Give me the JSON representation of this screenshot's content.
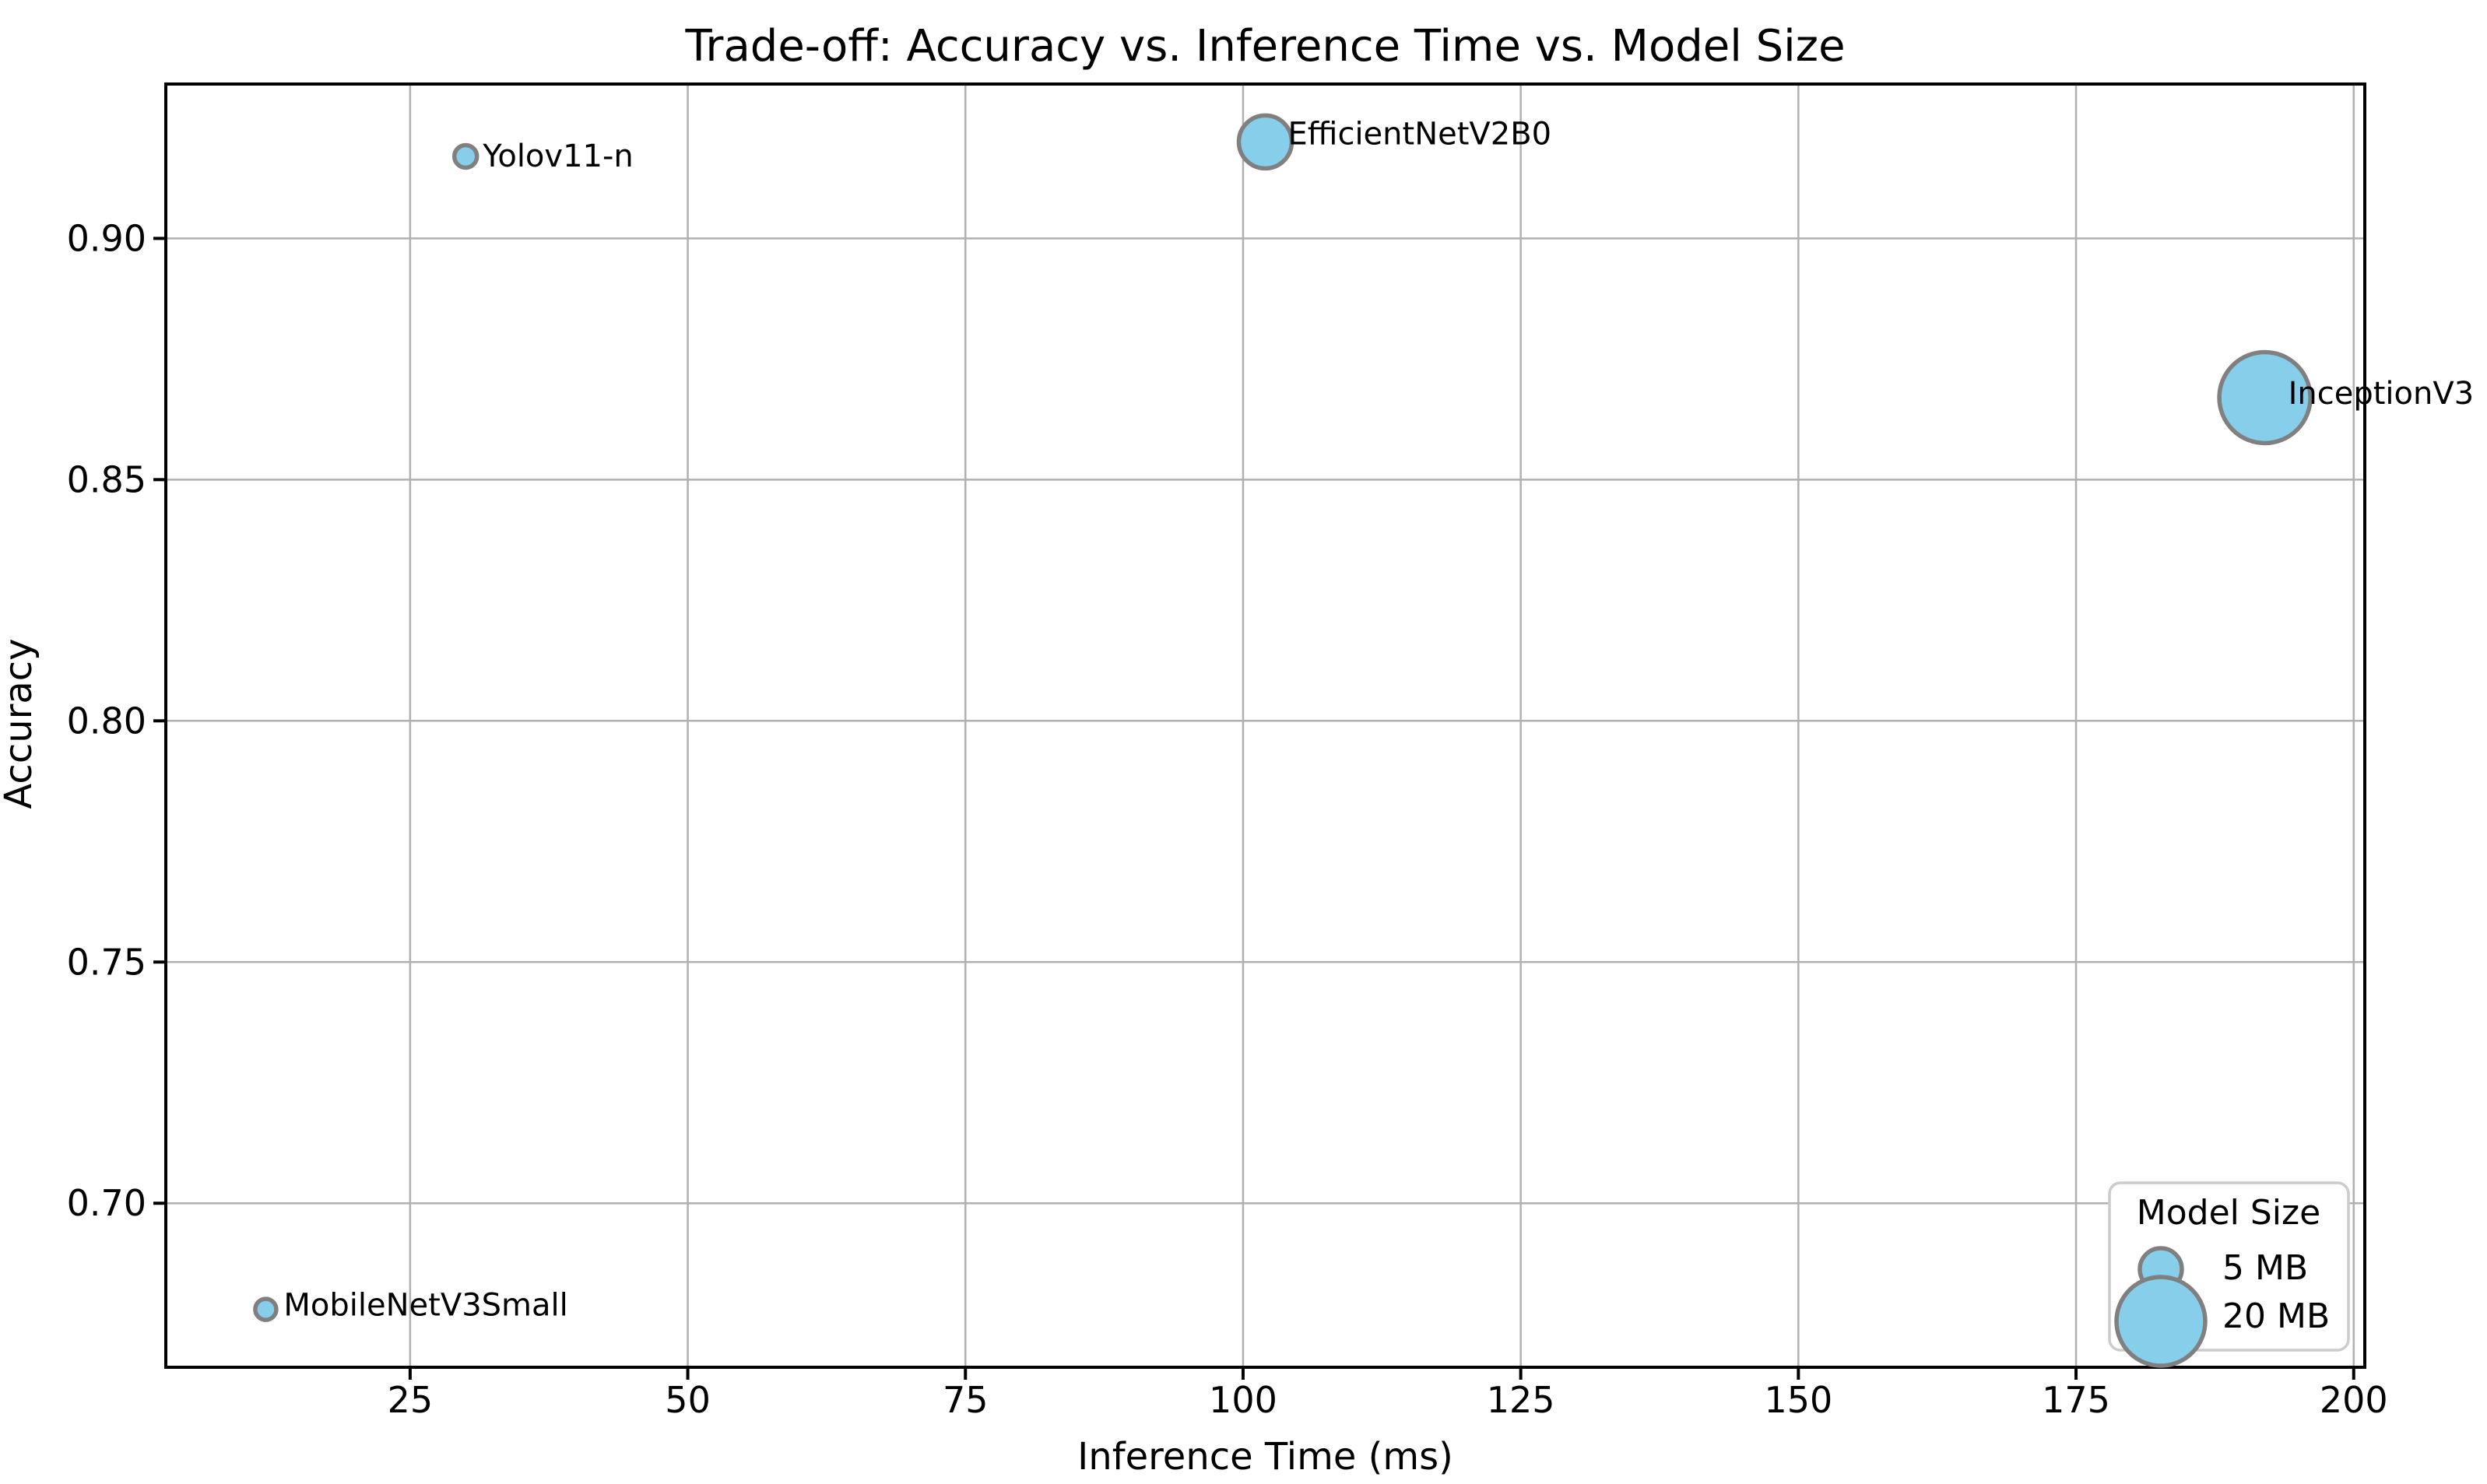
{
  "figure": {
    "title": "Trade-off: Accuracy vs. Inference Time vs. Model Size"
  },
  "chart_data": {
    "type": "scatter",
    "title": "Trade-off: Accuracy vs. Inference Time vs. Model Size",
    "xlabel": "Inference Time (ms)",
    "ylabel": "Accuracy",
    "xlim": [
      3,
      201
    ],
    "ylim": [
      0.666,
      0.932
    ],
    "grid": true,
    "x_ticks": [
      {
        "value": 25,
        "label": "25"
      },
      {
        "value": 50,
        "label": "50"
      },
      {
        "value": 75,
        "label": "75"
      },
      {
        "value": 100,
        "label": "100"
      },
      {
        "value": 125,
        "label": "125"
      },
      {
        "value": 150,
        "label": "150"
      },
      {
        "value": 175,
        "label": "175"
      },
      {
        "value": 200,
        "label": "200"
      }
    ],
    "y_ticks": [
      {
        "value": 0.7,
        "label": "0.70"
      },
      {
        "value": 0.75,
        "label": "0.75"
      },
      {
        "value": 0.8,
        "label": "0.80"
      },
      {
        "value": 0.85,
        "label": "0.85"
      },
      {
        "value": 0.9,
        "label": "0.90"
      }
    ],
    "points": [
      {
        "label": "MobileNetV3Small",
        "x": 12,
        "y": 0.678,
        "radius_px": 13.5,
        "label_offset": [
          23,
          -6
        ]
      },
      {
        "label": "Yolov11-n",
        "x": 30,
        "y": 0.917,
        "radius_px": 14.5,
        "label_offset": [
          22,
          -1
        ]
      },
      {
        "label": "EfficientNetV2B0",
        "x": 102,
        "y": 0.92,
        "radius_px": 34.0,
        "label_offset": [
          29,
          -11
        ]
      },
      {
        "label": "InceptionV3",
        "x": 192,
        "y": 0.867,
        "radius_px": 58.5,
        "label_offset": [
          30,
          -6
        ]
      }
    ],
    "legend": {
      "title": "Model Size",
      "position": "lower right",
      "entries": [
        {
          "label": "5 MB",
          "radius_px": 27
        },
        {
          "label": "20 MB",
          "radius_px": 57
        }
      ]
    },
    "colors": {
      "bubble_fill": "#87CEEB",
      "bubble_edge": "#808080",
      "grid": "#b0b0b0",
      "spine": "#000000",
      "text": "#000000",
      "legend_border": "#cccccc",
      "legend_fill": "#ffffff",
      "background": "#ffffff"
    }
  }
}
